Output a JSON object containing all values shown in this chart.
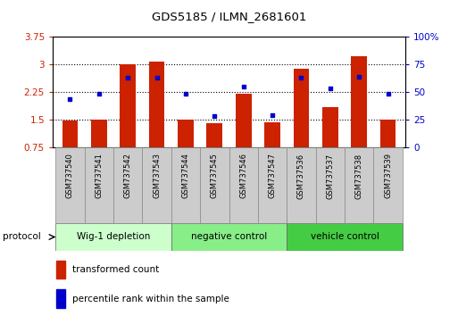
{
  "title": "GDS5185 / ILMN_2681601",
  "samples": [
    "GSM737540",
    "GSM737541",
    "GSM737542",
    "GSM737543",
    "GSM737544",
    "GSM737545",
    "GSM737546",
    "GSM737547",
    "GSM737536",
    "GSM737537",
    "GSM737538",
    "GSM737539"
  ],
  "bar_values": [
    1.47,
    1.5,
    3.0,
    3.06,
    1.5,
    1.4,
    2.2,
    1.42,
    2.88,
    1.82,
    3.22,
    1.5
  ],
  "dot_values": [
    2.05,
    2.2,
    2.62,
    2.62,
    2.2,
    1.6,
    2.38,
    1.62,
    2.62,
    2.34,
    2.65,
    2.2
  ],
  "ylim_left": [
    0.75,
    3.75
  ],
  "ylim_right": [
    0,
    100
  ],
  "yticks_left": [
    0.75,
    1.5,
    2.25,
    3.0,
    3.75
  ],
  "yticks_right": [
    0,
    25,
    50,
    75,
    100
  ],
  "ytick_labels_left": [
    "0.75",
    "1.5",
    "2.25",
    "3",
    "3.75"
  ],
  "ytick_labels_right": [
    "0",
    "25",
    "50",
    "75",
    "100%"
  ],
  "groups": [
    {
      "label": "Wig-1 depletion",
      "start": 0,
      "end": 3,
      "color": "#ccffcc"
    },
    {
      "label": "negative control",
      "start": 4,
      "end": 7,
      "color": "#88ee88"
    },
    {
      "label": "vehicle control",
      "start": 8,
      "end": 11,
      "color": "#44cc44"
    }
  ],
  "protocol_label": "protocol",
  "bar_color": "#cc2200",
  "dot_color": "#0000cc",
  "bar_width": 0.55,
  "legend_bar_label": "transformed count",
  "legend_dot_label": "percentile rank within the sample",
  "grid_color": "#000000",
  "bg_color": "#ffffff",
  "plot_bg": "#ffffff",
  "tick_label_color_left": "#cc2200",
  "tick_label_color_right": "#0000cc",
  "sample_cell_color": "#cccccc",
  "sample_cell_border": "#888888"
}
